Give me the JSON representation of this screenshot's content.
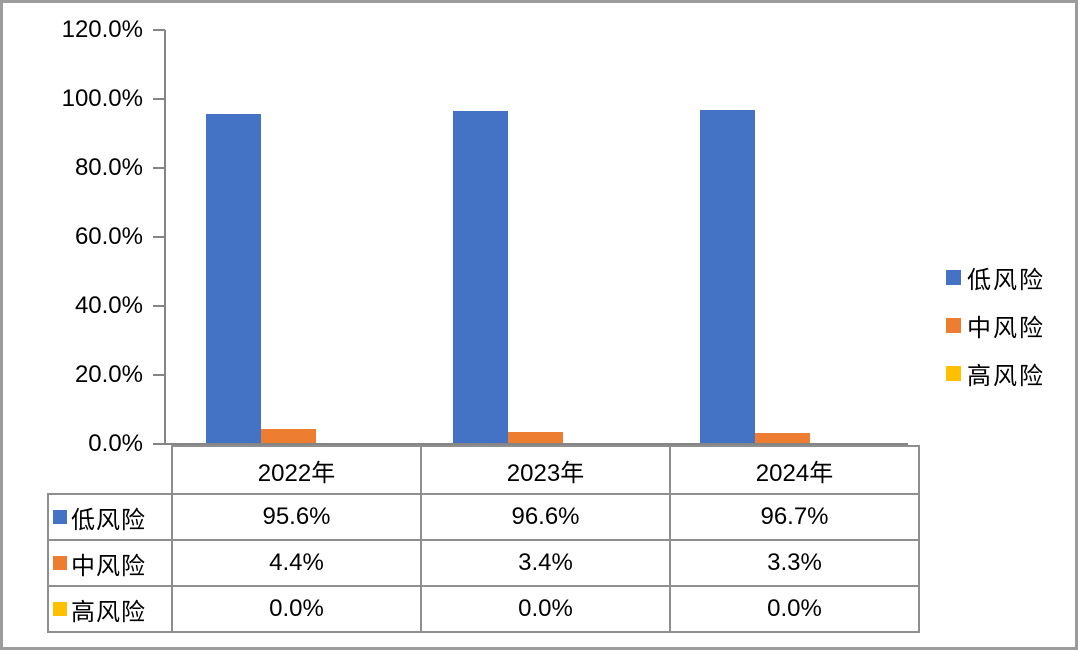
{
  "chart_data": {
    "type": "bar",
    "title": "",
    "categories": [
      "2022年",
      "2023年",
      "2024年"
    ],
    "series": [
      {
        "name": "低风险",
        "color": "#4472C4",
        "values": [
          95.6,
          96.6,
          96.7
        ]
      },
      {
        "name": "中风险",
        "color": "#ED7D31",
        "values": [
          4.4,
          3.4,
          3.3
        ]
      },
      {
        "name": "高风险",
        "color": "#FFC000",
        "values": [
          0.0,
          0.0,
          0.0
        ]
      }
    ],
    "ylim": [
      0,
      120
    ],
    "ytick_step": 20,
    "ytick_labels": [
      "0.0%",
      "20.0%",
      "40.0%",
      "60.0%",
      "80.0%",
      "100.0%",
      "120.0%"
    ],
    "xlabel": "",
    "ylabel": "",
    "grid": false,
    "legend_position": "right"
  },
  "table": {
    "rows": [
      {
        "label": "低风险",
        "values": [
          "95.6%",
          "96.6%",
          "96.7%"
        ]
      },
      {
        "label": "中风险",
        "values": [
          "4.4%",
          "3.4%",
          "3.3%"
        ]
      },
      {
        "label": "高风险",
        "values": [
          "0.0%",
          "0.0%",
          "0.0%"
        ]
      }
    ]
  },
  "colors": {
    "series_low": "#4472C4",
    "series_mid": "#ED7D31",
    "series_high": "#FFC000",
    "axis_gray": "#858585",
    "table_border_gray": "#8e8e8e",
    "frame_gray": "#9c9c9c",
    "text": "#000000"
  }
}
